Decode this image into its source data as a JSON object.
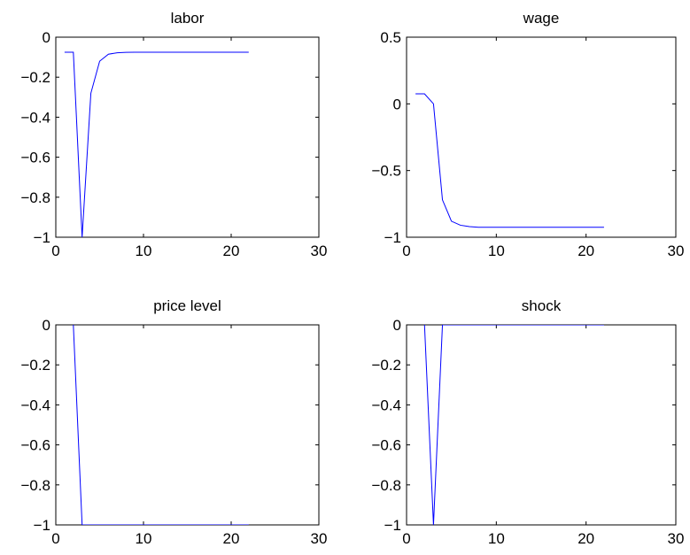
{
  "chart_data": [
    {
      "type": "line",
      "title": "labor",
      "xlabel": "",
      "ylabel": "",
      "xlim": [
        0,
        30
      ],
      "ylim": [
        -1,
        0
      ],
      "xticks": [
        0,
        10,
        20,
        30
      ],
      "xtick_labels": [
        "0",
        "10",
        "20",
        "30"
      ],
      "yticks": [
        0,
        -0.2,
        -0.4,
        -0.6,
        -0.8,
        -1
      ],
      "ytick_labels": [
        "0",
        "−0.2",
        "−0.4",
        "−0.6",
        "−0.8",
        "−1"
      ],
      "grid": false,
      "color": "#0000ff",
      "series": [
        {
          "x": [
            1,
            2,
            3,
            4,
            5,
            6,
            7,
            8,
            9,
            10,
            11,
            12,
            13,
            14,
            15,
            16,
            17,
            18,
            19,
            20,
            21,
            22
          ],
          "values": [
            -0.075,
            -0.075,
            -1.0,
            -0.28,
            -0.12,
            -0.085,
            -0.078,
            -0.076,
            -0.075,
            -0.075,
            -0.075,
            -0.075,
            -0.075,
            -0.075,
            -0.075,
            -0.075,
            -0.075,
            -0.075,
            -0.075,
            -0.075,
            -0.075,
            -0.075
          ]
        }
      ]
    },
    {
      "type": "line",
      "title": "wage",
      "xlabel": "",
      "ylabel": "",
      "xlim": [
        0,
        30
      ],
      "ylim": [
        -1,
        0.5
      ],
      "xticks": [
        0,
        10,
        20,
        30
      ],
      "xtick_labels": [
        "0",
        "10",
        "20",
        "30"
      ],
      "yticks": [
        0.5,
        0,
        -0.5,
        -1
      ],
      "ytick_labels": [
        "0.5",
        "0",
        "−0.5",
        "−1"
      ],
      "grid": false,
      "color": "#0000ff",
      "series": [
        {
          "x": [
            1,
            2,
            3,
            4,
            5,
            6,
            7,
            8,
            9,
            10,
            11,
            12,
            13,
            14,
            15,
            16,
            17,
            18,
            19,
            20,
            21,
            22
          ],
          "values": [
            0.075,
            0.075,
            0.0,
            -0.72,
            -0.88,
            -0.91,
            -0.92,
            -0.925,
            -0.925,
            -0.925,
            -0.925,
            -0.925,
            -0.925,
            -0.925,
            -0.925,
            -0.925,
            -0.925,
            -0.925,
            -0.925,
            -0.925,
            -0.925,
            -0.925
          ]
        }
      ]
    },
    {
      "type": "line",
      "title": "price level",
      "xlabel": "",
      "ylabel": "",
      "xlim": [
        0,
        30
      ],
      "ylim": [
        -1,
        0
      ],
      "xticks": [
        0,
        10,
        20,
        30
      ],
      "xtick_labels": [
        "0",
        "10",
        "20",
        "30"
      ],
      "yticks": [
        0,
        -0.2,
        -0.4,
        -0.6,
        -0.8,
        -1
      ],
      "ytick_labels": [
        "0",
        "−0.2",
        "−0.4",
        "−0.6",
        "−0.8",
        "−1"
      ],
      "grid": false,
      "color": "#0000ff",
      "series": [
        {
          "x": [
            1,
            2,
            3,
            4,
            5,
            6,
            7,
            8,
            9,
            10,
            11,
            12,
            13,
            14,
            15,
            16,
            17,
            18,
            19,
            20,
            21,
            22
          ],
          "values": [
            0.05,
            0.0,
            -1.0,
            -1.0,
            -1.0,
            -1.0,
            -1.0,
            -1.0,
            -1.0,
            -1.0,
            -1.0,
            -1.0,
            -1.0,
            -1.0,
            -1.0,
            -1.0,
            -1.0,
            -1.0,
            -1.0,
            -1.0,
            -1.0,
            -1.0
          ]
        }
      ]
    },
    {
      "type": "line",
      "title": "shock",
      "xlabel": "",
      "ylabel": "",
      "xlim": [
        0,
        30
      ],
      "ylim": [
        -1,
        0
      ],
      "xticks": [
        0,
        10,
        20,
        30
      ],
      "xtick_labels": [
        "0",
        "10",
        "20",
        "30"
      ],
      "yticks": [
        0,
        -0.2,
        -0.4,
        -0.6,
        -0.8,
        -1
      ],
      "ytick_labels": [
        "0",
        "−0.2",
        "−0.4",
        "−0.6",
        "−0.8",
        "−1"
      ],
      "grid": false,
      "color": "#0000ff",
      "series": [
        {
          "x": [
            1,
            2,
            3,
            4,
            5,
            6,
            7,
            8,
            9,
            10,
            11,
            12,
            13,
            14,
            15,
            16,
            17,
            18,
            19,
            20,
            21,
            22
          ],
          "values": [
            0.05,
            0.0,
            -1.0,
            0.0,
            0.0,
            0.0,
            0.0,
            0.0,
            0.0,
            0.0,
            0.0,
            0.0,
            0.0,
            0.0,
            0.0,
            0.0,
            0.0,
            0.0,
            0.0,
            0.0,
            0.0,
            0.0
          ]
        }
      ]
    }
  ]
}
